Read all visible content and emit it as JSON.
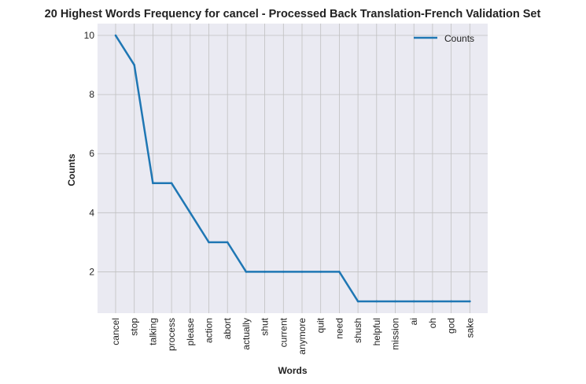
{
  "chart_data": {
    "type": "line",
    "title": "20 Highest Words Frequency for cancel - Processed Back Translation-French Validation Set",
    "xlabel": "Words",
    "ylabel": "Counts",
    "categories": [
      "cancel",
      "stop",
      "talking",
      "process",
      "please",
      "action",
      "abort",
      "actually",
      "shut",
      "current",
      "anymore",
      "quit",
      "need",
      "shush",
      "helpful",
      "mission",
      "ai",
      "oh",
      "god",
      "sake"
    ],
    "series": [
      {
        "name": "Counts",
        "values": [
          10,
          9,
          5,
          5,
          4,
          3,
          3,
          2,
          2,
          2,
          2,
          2,
          2,
          1,
          1,
          1,
          1,
          1,
          1,
          1
        ]
      }
    ],
    "ylim": [
      0.6,
      10.4
    ],
    "yticks": [
      2,
      4,
      6,
      8,
      10
    ],
    "grid": true,
    "legend_position": "top-right",
    "colors": {
      "line": "#1f77b4",
      "plot_bg": "#eaeaf2",
      "grid": "#c0c0c0"
    }
  }
}
